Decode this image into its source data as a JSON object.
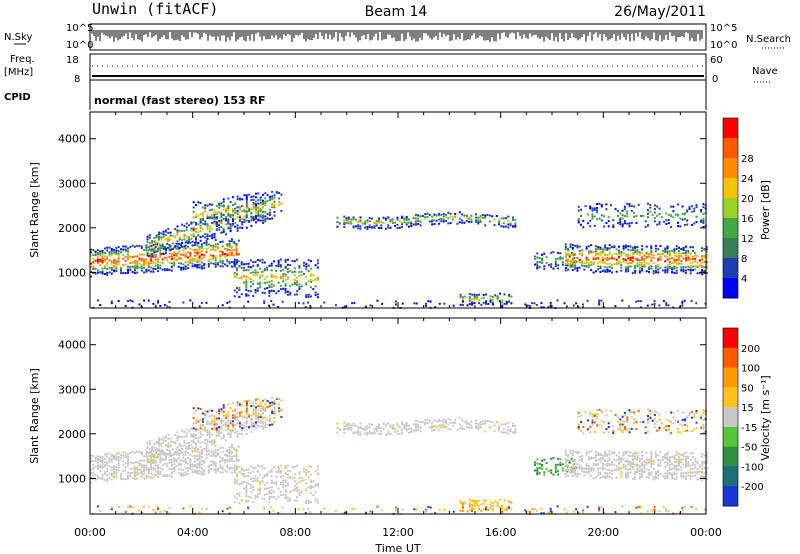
{
  "header": {
    "station": "Unwin (fitACF)",
    "beam": "Beam 14",
    "date": "26/May/2011"
  },
  "status_panel": {
    "nsky_label": "N.Sky",
    "nsky_ticks": [
      "10^5",
      "10^0"
    ],
    "nsearch_label": "N.Search",
    "nsearch_ticks": [
      "10^5",
      "10^0"
    ],
    "freq_label": "Freq.",
    "freq_unit": "[MHz]",
    "freq_ticks": [
      "18",
      "8"
    ],
    "nave_label": "Nave",
    "nave_ticks": [
      "60",
      "0"
    ],
    "cpid_label": "CPID",
    "cpid_text": "normal (fast stereo) 153 RF"
  },
  "chart_data": [
    {
      "type": "heatmap",
      "panel": "power",
      "ylabel": "Slant Range [km]",
      "ylim": [
        200,
        4600
      ],
      "yticks": [
        "1000",
        "2000",
        "3000",
        "4000"
      ],
      "xlim_hours": [
        0,
        24
      ],
      "colorbar": {
        "label": "Power [dB]",
        "ticks": [
          "4",
          "8",
          "12",
          "16",
          "20",
          "24",
          "28"
        ],
        "colors": [
          "#0000ff",
          "#1f3fae",
          "#3a7f5c",
          "#41a945",
          "#9cd02a",
          "#f5c400",
          "#ff8c00",
          "#ff5a00",
          "#ff0000"
        ]
      }
    },
    {
      "type": "heatmap",
      "panel": "velocity",
      "ylabel": "Slant Range [km]",
      "ylim": [
        200,
        4600
      ],
      "yticks": [
        "1000",
        "2000",
        "3000",
        "4000"
      ],
      "xlim_hours": [
        0,
        24
      ],
      "colorbar": {
        "label": "Velocity [m s⁻¹]",
        "ticks": [
          "200",
          "100",
          "50",
          "15",
          "-15",
          "-50",
          "-100",
          "-200"
        ],
        "colors": [
          "#1b36d6",
          "#1c6e7a",
          "#2e8e44",
          "#57c53a",
          "#c8c8c8",
          "#ffc21a",
          "#ff9a00",
          "#ff5a00",
          "#ff0000"
        ]
      }
    }
  ],
  "xaxis": {
    "label": "Time UT",
    "ticks": [
      "00:00",
      "04:00",
      "08:00",
      "12:00",
      "16:00",
      "20:00",
      "00:00"
    ]
  }
}
